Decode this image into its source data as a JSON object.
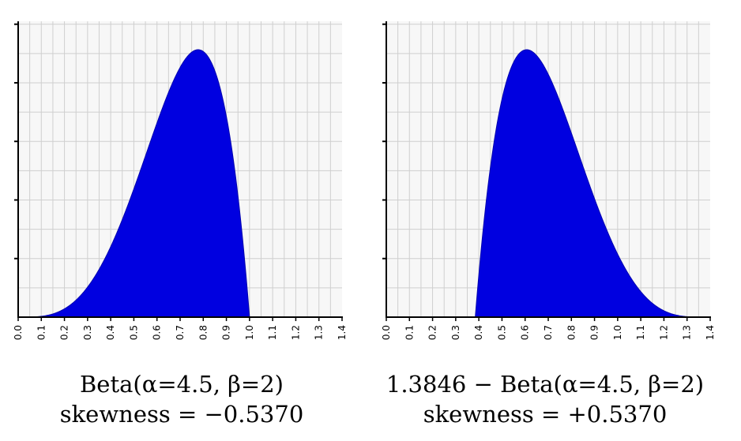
{
  "chart_data": [
    {
      "type": "area",
      "distribution": {
        "name": "Beta",
        "alpha": 4.5,
        "beta": 2,
        "shift": 0,
        "mirrored": false
      },
      "x_range": [
        0.0,
        1.4
      ],
      "y_tick_count": 5,
      "x_tick_labels": [
        "0.0",
        "0.1",
        "0.2",
        "0.3",
        "0.4",
        "0.5",
        "0.6",
        "0.7",
        "0.8",
        "0.9",
        "1.0",
        "1.1",
        "1.2",
        "1.3",
        "1.4"
      ],
      "y_tick_labels": [],
      "grid": true,
      "series_color": "#0000e0",
      "caption": [
        "Beta(α=4.5, β=2)",
        "skewness = −0.5370"
      ]
    },
    {
      "type": "area",
      "distribution": {
        "name": "Beta",
        "alpha": 4.5,
        "beta": 2,
        "shift": 1.3846,
        "mirrored": true
      },
      "x_range": [
        0.0,
        1.4
      ],
      "y_tick_count": 5,
      "x_tick_labels": [
        "0.0",
        "0.1",
        "0.2",
        "0.3",
        "0.4",
        "0.5",
        "0.6",
        "0.7",
        "0.8",
        "0.9",
        "1.0",
        "1.1",
        "1.2",
        "1.3",
        "1.4"
      ],
      "y_tick_labels": [],
      "grid": true,
      "series_color": "#0000e0",
      "caption": [
        "1.3846 − Beta(α=4.5, β=2)",
        "skewness = +0.5370"
      ]
    }
  ],
  "colors": {
    "plot_bg": "#f7f7f7",
    "grid": "#cfcfcf",
    "axis": "#000000"
  }
}
